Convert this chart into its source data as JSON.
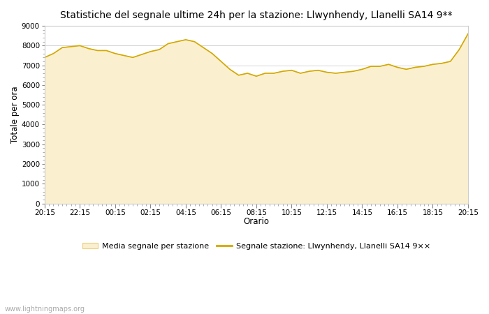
{
  "title": "Statistiche del segnale ultime 24h per la stazione: Llwynhendy, Llanelli SA14 9**",
  "xlabel": "Orario",
  "ylabel": "Totale per ora",
  "xlabels": [
    "20:15",
    "22:15",
    "00:15",
    "02:15",
    "04:15",
    "06:15",
    "08:15",
    "10:15",
    "12:15",
    "14:15",
    "16:15",
    "18:15",
    "20:15"
  ],
  "ylim": [
    0,
    9000
  ],
  "yticks": [
    0,
    1000,
    2000,
    3000,
    4000,
    5000,
    6000,
    7000,
    8000,
    9000
  ],
  "fill_color": "#FAF0D0",
  "fill_edge_color": "#E8D080",
  "line_color": "#D4A800",
  "background_color": "#ffffff",
  "watermark": "www.lightningmaps.org",
  "legend_fill_label": "Media segnale per stazione",
  "legend_line_label": "Segnale stazione: Llwynhendy, Llanelli SA14 9××",
  "x_values": [
    0,
    1,
    2,
    3,
    4,
    5,
    6,
    7,
    8,
    9,
    10,
    11,
    12,
    13,
    14,
    15,
    16,
    17,
    18,
    19,
    20,
    21,
    22,
    23,
    24,
    25,
    26,
    27,
    28,
    29,
    30,
    31,
    32,
    33,
    34,
    35,
    36,
    37,
    38,
    39,
    40,
    41,
    42,
    43,
    44,
    45,
    46,
    47,
    48
  ],
  "y_fill": [
    7400,
    7600,
    7900,
    7950,
    8000,
    7850,
    7750,
    7750,
    7600,
    7500,
    7400,
    7550,
    7700,
    7800,
    8100,
    8200,
    8300,
    8200,
    7900,
    7600,
    7200,
    6800,
    6500,
    6600,
    6450,
    6600,
    6600,
    6700,
    6750,
    6600,
    6700,
    6750,
    6650,
    6600,
    6650,
    6700,
    6800,
    6950,
    6950,
    7050,
    6900,
    6800,
    6900,
    6950,
    7050,
    7100,
    7200,
    7800,
    8600
  ],
  "y_line": [
    7400,
    7600,
    7900,
    7950,
    8000,
    7850,
    7750,
    7750,
    7600,
    7500,
    7400,
    7550,
    7700,
    7800,
    8100,
    8200,
    8300,
    8200,
    7900,
    7600,
    7200,
    6800,
    6500,
    6600,
    6450,
    6600,
    6600,
    6700,
    6750,
    6600,
    6700,
    6750,
    6650,
    6600,
    6650,
    6700,
    6800,
    6950,
    6950,
    7050,
    6900,
    6800,
    6900,
    6950,
    7050,
    7100,
    7200,
    7800,
    8600
  ]
}
